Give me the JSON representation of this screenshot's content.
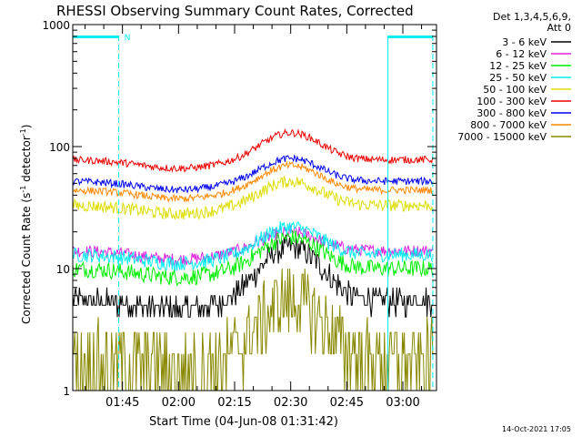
{
  "chart_data": {
    "type": "line",
    "title": "RHESSI Observing Summary Count Rates, Corrected",
    "xlabel": "Start Time (04-Jun-08 01:31:42)",
    "ylabel_main": "Corrected Count Rate (s",
    "ylabel_sup1": "-1",
    "ylabel_mid": " detector",
    "ylabel_sup2": "-1",
    "ylabel_end": ")",
    "y_scale": "log",
    "ylim": [
      1,
      1000
    ],
    "xlim": [
      "01:31:42",
      "03:09:00"
    ],
    "y_ticks": [
      {
        "value": 1,
        "label": "1"
      },
      {
        "value": 10,
        "label": "10"
      },
      {
        "value": 100,
        "label": "100"
      },
      {
        "value": 1000,
        "label": "1000"
      }
    ],
    "x_ticks": [
      {
        "minutes": 105,
        "label": "01:45"
      },
      {
        "minutes": 120,
        "label": "02:00"
      },
      {
        "minutes": 135,
        "label": "02:15"
      },
      {
        "minutes": 150,
        "label": "02:30"
      },
      {
        "minutes": 165,
        "label": "02:45"
      },
      {
        "minutes": 180,
        "label": "03:00"
      }
    ],
    "legend_header": [
      "Det 1,3,4,5,6,9,",
      "Att 0"
    ],
    "legend_position": "right",
    "series": [
      {
        "name": "3 - 6 keV",
        "color": "#000000",
        "base": 5.5,
        "peak": 15,
        "noise": 0.1,
        "step": 1
      },
      {
        "name": "6 - 12 keV",
        "color": "#dd22dd",
        "base": 14,
        "peak": 20,
        "noise": 0.05,
        "step": 0
      },
      {
        "name": "12 - 25 keV",
        "color": "#00ee00",
        "base": 10,
        "peak": 18,
        "noise": 0.07,
        "step": 0
      },
      {
        "name": "25 - 50 keV",
        "color": "#00eeee",
        "base": 13,
        "peak": 22,
        "noise": 0.06,
        "step": 0
      },
      {
        "name": "50 - 100 keV",
        "color": "#dddd00",
        "base": 33,
        "peak": 52,
        "noise": 0.05,
        "step": 0
      },
      {
        "name": "100 - 300 keV",
        "color": "#ee0000",
        "base": 78,
        "peak": 130,
        "noise": 0.03,
        "step": 0
      },
      {
        "name": "300 - 800 keV",
        "color": "#0000ee",
        "base": 52,
        "peak": 80,
        "noise": 0.03,
        "step": 0
      },
      {
        "name": "800 - 7000 keV",
        "color": "#ff8800",
        "base": 44,
        "peak": 70,
        "noise": 0.03,
        "step": 0
      },
      {
        "name": "7000 - 15000 keV",
        "color": "#888800",
        "base": 1.8,
        "peak": 5.5,
        "noise": 0.3,
        "step": 1
      }
    ],
    "flare_peak_time": "02:30",
    "attenuator_bars": [
      {
        "start": "01:31:42",
        "end": "01:44:00",
        "label": "N"
      },
      {
        "start": "02:56:00",
        "end": "03:08:00",
        "label": ""
      }
    ],
    "guide_lines": [
      "01:31:42",
      "01:44:00",
      "02:56:00",
      "03:08:00"
    ],
    "accent_color": "#00eeee"
  },
  "footer": {
    "date": "14-Oct-2021 17:05"
  }
}
